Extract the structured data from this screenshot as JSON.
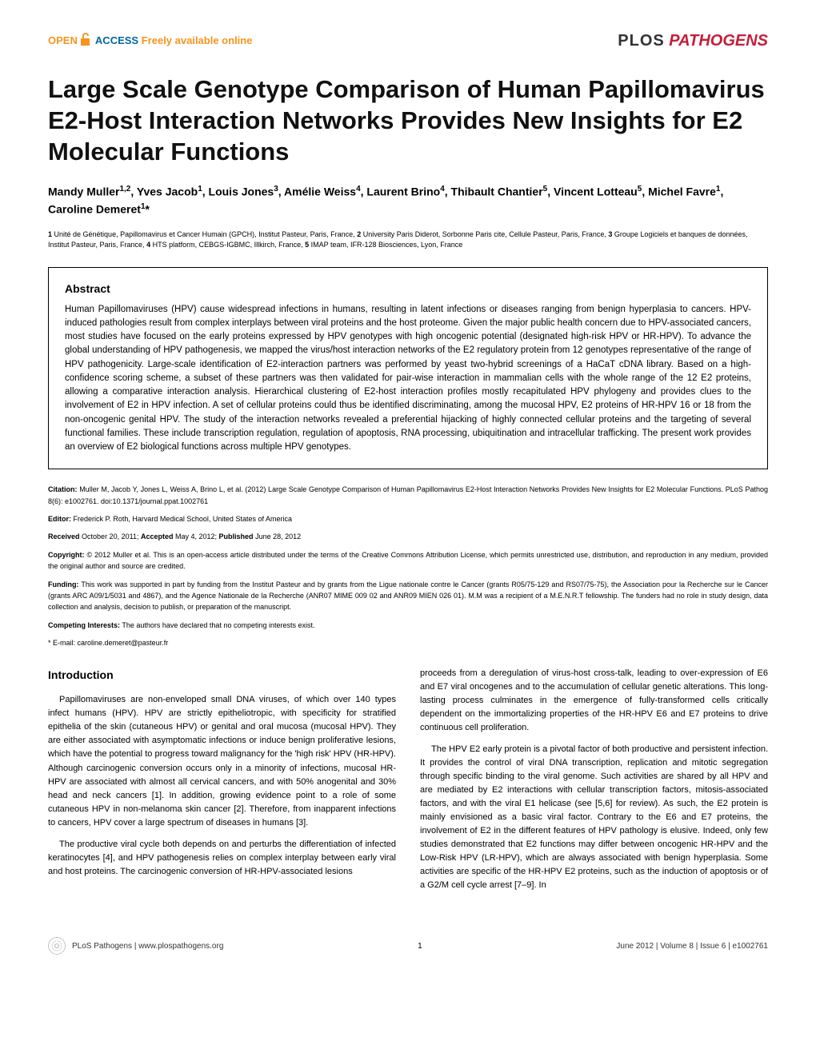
{
  "header": {
    "open": "OPEN",
    "access": "ACCESS",
    "freely": "Freely available online",
    "journal_plos": "PLOS",
    "journal_path": "PATHOGENS"
  },
  "title": "Large Scale Genotype Comparison of Human Papillomavirus E2-Host Interaction Networks Provides New Insights for E2 Molecular Functions",
  "authors_html": "Mandy Muller<sup>1,2</sup>, Yves Jacob<sup>1</sup>, Louis Jones<sup>3</sup>, Amélie Weiss<sup>4</sup>, Laurent Brino<sup>4</sup>, Thibault Chantier<sup>5</sup>, Vincent Lotteau<sup>5</sup>, Michel Favre<sup>1</sup>, Caroline Demeret<sup>1</sup>*",
  "affiliations_html": "<span class=\"num\">1</span> Unité de Génétique, Papillomavirus et Cancer Humain (GPCH), Institut Pasteur, Paris, France, <span class=\"num\">2</span> University Paris Diderot, Sorbonne Paris cite, Cellule Pasteur, Paris, France, <span class=\"num\">3</span> Groupe Logiciels et banques de données, Institut Pasteur, Paris, France, <span class=\"num\">4</span> HTS platform, CEBGS-IGBMC, Illkirch, France, <span class=\"num\">5</span> IMAP team, IFR-128 Biosciences, Lyon, France",
  "abstract": {
    "heading": "Abstract",
    "text": "Human Papillomaviruses (HPV) cause widespread infections in humans, resulting in latent infections or diseases ranging from benign hyperplasia to cancers. HPV-induced pathologies result from complex interplays between viral proteins and the host proteome. Given the major public health concern due to HPV-associated cancers, most studies have focused on the early proteins expressed by HPV genotypes with high oncogenic potential (designated high-risk HPV or HR-HPV). To advance the global understanding of HPV pathogenesis, we mapped the virus/host interaction networks of the E2 regulatory protein from 12 genotypes representative of the range of HPV pathogenicity. Large-scale identification of E2-interaction partners was performed by yeast two-hybrid screenings of a HaCaT cDNA library. Based on a high-confidence scoring scheme, a subset of these partners was then validated for pair-wise interaction in mammalian cells with the whole range of the 12 E2 proteins, allowing a comparative interaction analysis. Hierarchical clustering of E2-host interaction profiles mostly recapitulated HPV phylogeny and provides clues to the involvement of E2 in HPV infection. A set of cellular proteins could thus be identified discriminating, among the mucosal HPV, E2 proteins of HR-HPV 16 or 18 from the non-oncogenic genital HPV. The study of the interaction networks revealed a preferential hijacking of highly connected cellular proteins and the targeting of several functional families. These include transcription regulation, regulation of apoptosis, RNA processing, ubiquitination and intracellular trafficking. The present work provides an overview of E2 biological functions across multiple HPV genotypes."
  },
  "meta": {
    "citation_label": "Citation:",
    "citation_text": "Muller M, Jacob Y, Jones L, Weiss A, Brino L, et al. (2012) Large Scale Genotype Comparison of Human Papillomavirus E2-Host Interaction Networks Provides New Insights for E2 Molecular Functions. PLoS Pathog 8(6): e1002761. doi:10.1371/journal.ppat.1002761",
    "editor_label": "Editor:",
    "editor_text": "Frederick P. Roth, Harvard Medical School, United States of America",
    "received_label": "Received",
    "received_text": "October 20, 2011;",
    "accepted_label": "Accepted",
    "accepted_text": "May 4, 2012;",
    "published_label": "Published",
    "published_text": "June 28, 2012",
    "copyright_label": "Copyright:",
    "copyright_text": "© 2012 Muller et al. This is an open-access article distributed under the terms of the Creative Commons Attribution License, which permits unrestricted use, distribution, and reproduction in any medium, provided the original author and source are credited.",
    "funding_label": "Funding:",
    "funding_text": "This work was supported in part by funding from the Institut Pasteur and by grants from the Ligue nationale contre le Cancer (grants R05/75-129 and RS07/75-75), the Association pour la Recherche sur le Cancer (grants ARC A09/1/5031 and 4867), and the Agence Nationale de la Recherche (ANR07 MIME 009 02 and ANR09 MIEN 026 01). M.M was a recipient of a M.E.N.R.T fellowship. The funders had no role in study design, data collection and analysis, decision to publish, or preparation of the manuscript.",
    "competing_label": "Competing Interests:",
    "competing_text": "The authors have declared that no competing interests exist.",
    "email": "* E-mail: caroline.demeret@pasteur.fr"
  },
  "body": {
    "intro_heading": "Introduction",
    "col1_p1": "Papillomaviruses are non-enveloped small DNA viruses, of which over 140 types infect humans (HPV). HPV are strictly epitheliotropic, with specificity for stratified epithelia of the skin (cutaneous HPV) or genital and oral mucosa (mucosal HPV). They are either associated with asymptomatic infections or induce benign proliferative lesions, which have the potential to progress toward malignancy for the 'high risk' HPV (HR-HPV). Although carcinogenic conversion occurs only in a minority of infections, mucosal HR-HPV are associated with almost all cervical cancers, and with 50% anogenital and 30% head and neck cancers [1]. In addition, growing evidence point to a role of some cutaneous HPV in non-melanoma skin cancer [2]. Therefore, from inapparent infections to cancers, HPV cover a large spectrum of diseases in humans [3].",
    "col1_p2": "The productive viral cycle both depends on and perturbs the differentiation of infected keratinocytes [4], and HPV pathogenesis relies on complex interplay between early viral and host proteins. The carcinogenic conversion of HR-HPV-associated lesions",
    "col2_p1": "proceeds from a deregulation of virus-host cross-talk, leading to over-expression of E6 and E7 viral oncogenes and to the accumulation of cellular genetic alterations. This long-lasting process culminates in the emergence of fully-transformed cells critically dependent on the immortalizing properties of the HR-HPV E6 and E7 proteins to drive continuous cell proliferation.",
    "col2_p2": "The HPV E2 early protein is a pivotal factor of both productive and persistent infection. It provides the control of viral DNA transcription, replication and mitotic segregation through specific binding to the viral genome. Such activities are shared by all HPV and are mediated by E2 interactions with cellular transcription factors, mitosis-associated factors, and with the viral E1 helicase (see [5,6] for review). As such, the E2 protein is mainly envisioned as a basic viral factor. Contrary to the E6 and E7 proteins, the involvement of E2 in the different features of HPV pathology is elusive. Indeed, only few studies demonstrated that E2 functions may differ between oncogenic HR-HPV and the Low-Risk HPV (LR-HPV), which are always associated with benign hyperplasia. Some activities are specific of the HR-HPV E2 proteins, such as the induction of apoptosis or of a G2/M cell cycle arrest [7–9]. In"
  },
  "footer": {
    "site": "PLoS Pathogens | www.plospathogens.org",
    "page": "1",
    "issue": "June 2012 | Volume 8 | Issue 6 | e1002761"
  }
}
